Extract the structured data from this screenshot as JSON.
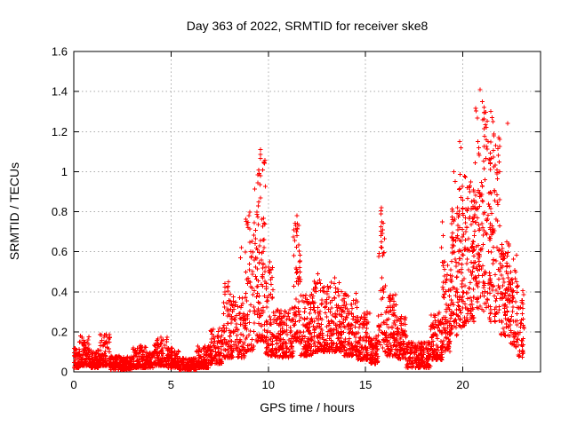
{
  "chart": {
    "title": "Day 363 of 2022, SRMTID for receiver ske8",
    "xlabel": "GPS time / hours",
    "ylabel": "SRMTID / TECUs"
  },
  "chart_data": {
    "type": "scatter",
    "title": "Day 363 of 2022, SRMTID for receiver ske8",
    "xlabel": "GPS time / hours",
    "ylabel": "SRMTID / TECUs",
    "xlim": [
      0,
      24
    ],
    "ylim": [
      0,
      1.6
    ],
    "xticks": [
      0,
      5,
      10,
      15,
      20
    ],
    "yticks": [
      0,
      0.2,
      0.4,
      0.6,
      0.8,
      1,
      1.2,
      1.4,
      1.6
    ],
    "grid": true,
    "legend": "none",
    "marker": "plus",
    "marker_color": "#ff0000",
    "grid_color": "#aaaaaa",
    "border_color": "#000000",
    "density_bands_format": [
      "t_start_h",
      "t_end_h",
      "value_min_TECU",
      "value_max_TECU",
      "n_points",
      "low_bias_exponent"
    ],
    "density_bands": [
      [
        0.0,
        0.3,
        0.02,
        0.12,
        55,
        2
      ],
      [
        0.3,
        0.8,
        0.03,
        0.18,
        90,
        2
      ],
      [
        0.8,
        1.3,
        0.02,
        0.11,
        80,
        2
      ],
      [
        1.3,
        1.9,
        0.03,
        0.19,
        100,
        2
      ],
      [
        1.9,
        3.0,
        0.01,
        0.08,
        170,
        1.5
      ],
      [
        3.0,
        3.7,
        0.02,
        0.13,
        105,
        2
      ],
      [
        3.7,
        4.1,
        0.02,
        0.1,
        60,
        1.5
      ],
      [
        4.1,
        4.8,
        0.03,
        0.18,
        110,
        2
      ],
      [
        4.8,
        5.4,
        0.02,
        0.12,
        90,
        1.5
      ],
      [
        5.4,
        6.3,
        0.01,
        0.07,
        135,
        1.5
      ],
      [
        6.3,
        7.0,
        0.02,
        0.13,
        100,
        1.5
      ],
      [
        7.0,
        7.7,
        0.04,
        0.22,
        100,
        1.5
      ],
      [
        7.7,
        8.1,
        0.07,
        0.45,
        65,
        1.6
      ],
      [
        8.1,
        8.8,
        0.07,
        0.38,
        100,
        1.6
      ],
      [
        8.8,
        9.3,
        0.1,
        0.8,
        75,
        1.8
      ],
      [
        9.3,
        9.85,
        0.15,
        1.08,
        105,
        1.8
      ],
      [
        9.85,
        10.25,
        0.08,
        0.55,
        70,
        1.7
      ],
      [
        10.25,
        11.3,
        0.07,
        0.32,
        150,
        1.5
      ],
      [
        11.3,
        11.65,
        0.15,
        0.78,
        65,
        1.5
      ],
      [
        11.65,
        12.3,
        0.08,
        0.4,
        110,
        1.7
      ],
      [
        12.3,
        13.1,
        0.1,
        0.46,
        130,
        1.7
      ],
      [
        13.1,
        13.9,
        0.1,
        0.45,
        130,
        1.7
      ],
      [
        13.9,
        14.6,
        0.08,
        0.4,
        110,
        1.7
      ],
      [
        14.6,
        15.25,
        0.06,
        0.3,
        100,
        1.6
      ],
      [
        15.25,
        15.65,
        0.04,
        0.18,
        65,
        1.5
      ],
      [
        15.65,
        16.05,
        0.1,
        0.82,
        55,
        1.5
      ],
      [
        16.05,
        16.6,
        0.08,
        0.4,
        90,
        1.7
      ],
      [
        16.6,
        17.1,
        0.06,
        0.28,
        80,
        1.6
      ],
      [
        17.1,
        18.35,
        0.02,
        0.15,
        185,
        1.5
      ],
      [
        18.35,
        18.95,
        0.06,
        0.3,
        100,
        1.6
      ],
      [
        18.95,
        19.35,
        0.1,
        0.55,
        75,
        1.4
      ],
      [
        19.35,
        19.75,
        0.18,
        0.85,
        75,
        1.3
      ],
      [
        19.75,
        20.15,
        0.22,
        1.0,
        80,
        1.4
      ],
      [
        20.15,
        20.6,
        0.25,
        0.95,
        90,
        1.4
      ],
      [
        20.6,
        21.35,
        0.3,
        1.32,
        130,
        1.4
      ],
      [
        21.35,
        21.95,
        0.25,
        1.2,
        110,
        1.5
      ],
      [
        21.95,
        22.45,
        0.18,
        0.65,
        90,
        1.4
      ],
      [
        22.45,
        22.85,
        0.12,
        0.6,
        60,
        1.4
      ],
      [
        22.85,
        23.15,
        0.06,
        0.45,
        40,
        1.4
      ]
    ],
    "peak_points_format": [
      "t_h",
      "value_TECU"
    ],
    "peak_points": [
      [
        7.95,
        0.45
      ],
      [
        7.9,
        0.42
      ],
      [
        8.62,
        0.62
      ],
      [
        8.58,
        0.57
      ],
      [
        9.0,
        0.78
      ],
      [
        8.95,
        0.72
      ],
      [
        9.59,
        1.11
      ],
      [
        9.6,
        1.085
      ],
      [
        9.61,
        1.065
      ],
      [
        9.6,
        0.98
      ],
      [
        9.57,
        0.935
      ],
      [
        10.08,
        0.55
      ],
      [
        10.04,
        0.5
      ],
      [
        11.47,
        0.78
      ],
      [
        11.5,
        0.74
      ],
      [
        11.44,
        0.7
      ],
      [
        12.55,
        0.49
      ],
      [
        13.42,
        0.47
      ],
      [
        15.82,
        0.82
      ],
      [
        15.85,
        0.75
      ],
      [
        15.8,
        0.68
      ],
      [
        18.95,
        0.75
      ],
      [
        19.0,
        0.68
      ],
      [
        18.9,
        0.62
      ],
      [
        19.55,
        1.0
      ],
      [
        19.62,
        0.95
      ],
      [
        19.85,
        1.15
      ],
      [
        19.9,
        1.12
      ],
      [
        20.89,
        1.41
      ],
      [
        21.0,
        1.35
      ],
      [
        21.1,
        1.32
      ],
      [
        21.45,
        1.3
      ],
      [
        21.5,
        1.27
      ],
      [
        21.55,
        1.25
      ],
      [
        22.3,
        1.24
      ],
      [
        21.2,
        1.22
      ],
      [
        21.6,
        1.18
      ],
      [
        21.3,
        1.15
      ],
      [
        21.7,
        1.13
      ]
    ]
  }
}
